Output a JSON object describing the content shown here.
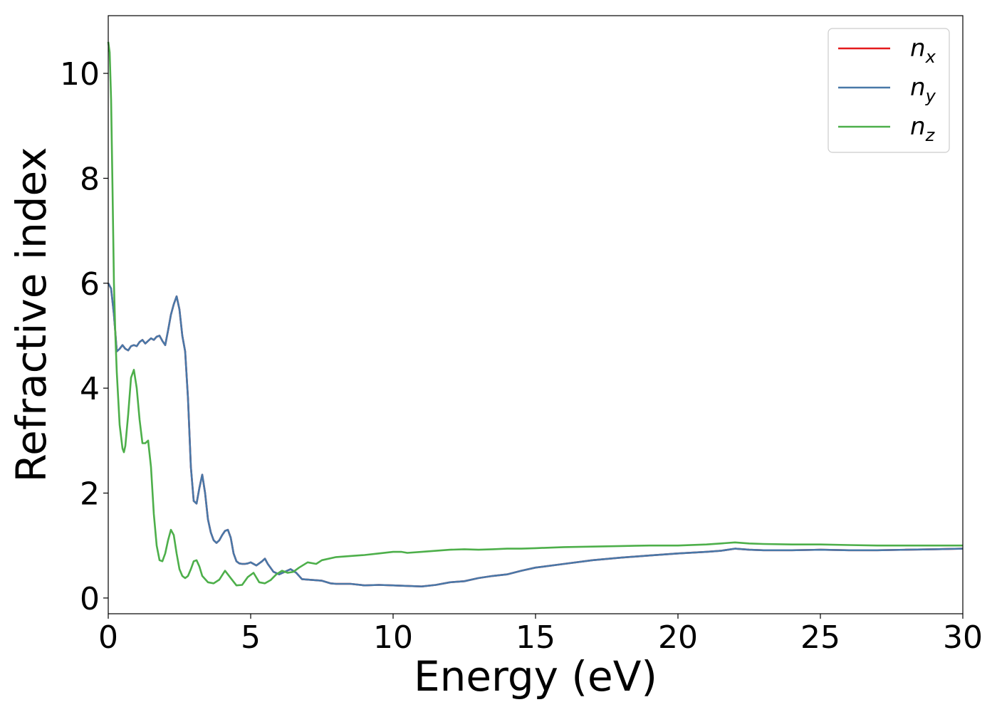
{
  "chart_data": {
    "type": "line",
    "title": "",
    "xlabel": "Energy (eV)",
    "ylabel": "Refractive index",
    "xlim": [
      0,
      30
    ],
    "ylim": [
      -0.3,
      11.1
    ],
    "xticks": [
      0,
      5,
      10,
      15,
      20,
      25,
      30
    ],
    "yticks": [
      0,
      2,
      4,
      6,
      8,
      10
    ],
    "grid": false,
    "legend_position": "top-right",
    "series": [
      {
        "name": "n",
        "subscript": "x",
        "color": "#e41a1c",
        "x": [
          0,
          0.1,
          0.2,
          0.3,
          0.4,
          0.5,
          0.6,
          0.7,
          0.8,
          0.9,
          1.0,
          1.1,
          1.2,
          1.3,
          1.4,
          1.5,
          1.6,
          1.7,
          1.8,
          1.9,
          2.0,
          2.1,
          2.2,
          2.3,
          2.4,
          2.5,
          2.6,
          2.7,
          2.8,
          2.9,
          3.0,
          3.1,
          3.2,
          3.3,
          3.4,
          3.5,
          3.6,
          3.7,
          3.8,
          3.9,
          4.0,
          4.1,
          4.2,
          4.3,
          4.4,
          4.5,
          4.6,
          4.7,
          4.8,
          4.9,
          5.0,
          5.2,
          5.4,
          5.5,
          5.6,
          5.8,
          6.0,
          6.2,
          6.4,
          6.6,
          6.8,
          7.0,
          7.5,
          7.8,
          8.0,
          8.5,
          9.0,
          9.5,
          10.0,
          10.5,
          11.0,
          11.5,
          12.0,
          12.5,
          13.0,
          13.5,
          14.0,
          14.5,
          15.0,
          16.0,
          17.0,
          18.0,
          19.0,
          20.0,
          21.0,
          21.5,
          22.0,
          22.5,
          23.0,
          24.0,
          25.0,
          26.0,
          27.0,
          28.0,
          29.0,
          30.0
        ],
        "y": [
          6.0,
          5.9,
          5.4,
          4.7,
          4.75,
          4.82,
          4.75,
          4.72,
          4.8,
          4.82,
          4.8,
          4.88,
          4.92,
          4.85,
          4.9,
          4.95,
          4.92,
          4.98,
          5.0,
          4.9,
          4.82,
          5.1,
          5.4,
          5.6,
          5.75,
          5.5,
          5.0,
          4.7,
          3.8,
          2.5,
          1.85,
          1.8,
          2.1,
          2.35,
          2.0,
          1.5,
          1.25,
          1.1,
          1.05,
          1.1,
          1.2,
          1.28,
          1.3,
          1.15,
          0.85,
          0.7,
          0.66,
          0.65,
          0.65,
          0.66,
          0.68,
          0.62,
          0.7,
          0.75,
          0.65,
          0.5,
          0.45,
          0.5,
          0.55,
          0.48,
          0.36,
          0.35,
          0.33,
          0.28,
          0.27,
          0.27,
          0.24,
          0.25,
          0.24,
          0.23,
          0.22,
          0.25,
          0.3,
          0.32,
          0.38,
          0.42,
          0.45,
          0.52,
          0.58,
          0.65,
          0.72,
          0.77,
          0.81,
          0.85,
          0.88,
          0.9,
          0.94,
          0.92,
          0.91,
          0.91,
          0.92,
          0.91,
          0.91,
          0.92,
          0.93,
          0.94
        ]
      },
      {
        "name": "n",
        "subscript": "y",
        "color": "#4878a8",
        "x": [
          0,
          0.1,
          0.2,
          0.3,
          0.4,
          0.5,
          0.6,
          0.7,
          0.8,
          0.9,
          1.0,
          1.1,
          1.2,
          1.3,
          1.4,
          1.5,
          1.6,
          1.7,
          1.8,
          1.9,
          2.0,
          2.1,
          2.2,
          2.3,
          2.4,
          2.5,
          2.6,
          2.7,
          2.8,
          2.9,
          3.0,
          3.1,
          3.2,
          3.3,
          3.4,
          3.5,
          3.6,
          3.7,
          3.8,
          3.9,
          4.0,
          4.1,
          4.2,
          4.3,
          4.4,
          4.5,
          4.6,
          4.7,
          4.8,
          4.9,
          5.0,
          5.2,
          5.4,
          5.5,
          5.6,
          5.8,
          6.0,
          6.2,
          6.4,
          6.6,
          6.8,
          7.0,
          7.5,
          7.8,
          8.0,
          8.5,
          9.0,
          9.5,
          10.0,
          10.5,
          11.0,
          11.5,
          12.0,
          12.5,
          13.0,
          13.5,
          14.0,
          14.5,
          15.0,
          16.0,
          17.0,
          18.0,
          19.0,
          20.0,
          21.0,
          21.5,
          22.0,
          22.5,
          23.0,
          24.0,
          25.0,
          26.0,
          27.0,
          28.0,
          29.0,
          30.0
        ],
        "y": [
          6.0,
          5.9,
          5.4,
          4.7,
          4.75,
          4.82,
          4.75,
          4.72,
          4.8,
          4.82,
          4.8,
          4.88,
          4.92,
          4.85,
          4.9,
          4.95,
          4.92,
          4.98,
          5.0,
          4.9,
          4.82,
          5.1,
          5.4,
          5.6,
          5.75,
          5.5,
          5.0,
          4.7,
          3.8,
          2.5,
          1.85,
          1.8,
          2.1,
          2.35,
          2.0,
          1.5,
          1.25,
          1.1,
          1.05,
          1.1,
          1.2,
          1.28,
          1.3,
          1.15,
          0.85,
          0.7,
          0.66,
          0.65,
          0.65,
          0.66,
          0.68,
          0.62,
          0.7,
          0.75,
          0.65,
          0.5,
          0.45,
          0.5,
          0.55,
          0.48,
          0.36,
          0.35,
          0.33,
          0.28,
          0.27,
          0.27,
          0.24,
          0.25,
          0.24,
          0.23,
          0.22,
          0.25,
          0.3,
          0.32,
          0.38,
          0.42,
          0.45,
          0.52,
          0.58,
          0.65,
          0.72,
          0.77,
          0.81,
          0.85,
          0.88,
          0.9,
          0.94,
          0.92,
          0.91,
          0.91,
          0.92,
          0.91,
          0.91,
          0.92,
          0.93,
          0.94
        ]
      },
      {
        "name": "n",
        "subscript": "z",
        "color": "#4daf4a",
        "x": [
          0,
          0.05,
          0.1,
          0.15,
          0.2,
          0.25,
          0.3,
          0.35,
          0.4,
          0.5,
          0.55,
          0.6,
          0.7,
          0.8,
          0.9,
          1.0,
          1.1,
          1.2,
          1.3,
          1.4,
          1.5,
          1.6,
          1.7,
          1.8,
          1.9,
          2.0,
          2.1,
          2.2,
          2.3,
          2.4,
          2.5,
          2.6,
          2.7,
          2.8,
          2.9,
          3.0,
          3.1,
          3.2,
          3.3,
          3.5,
          3.7,
          3.9,
          4.1,
          4.3,
          4.5,
          4.7,
          4.9,
          5.1,
          5.3,
          5.5,
          5.7,
          5.9,
          6.1,
          6.3,
          6.5,
          6.7,
          7.0,
          7.3,
          7.5,
          8.0,
          8.5,
          9.0,
          9.5,
          10.0,
          10.3,
          10.5,
          11.0,
          11.5,
          12.0,
          12.5,
          13.0,
          13.5,
          14.0,
          14.5,
          15.0,
          16.0,
          17.0,
          18.0,
          19.0,
          20.0,
          21.0,
          21.5,
          22.0,
          22.5,
          23.0,
          24.0,
          25.0,
          26.0,
          27.0,
          28.0,
          29.0,
          30.0
        ],
        "y": [
          10.6,
          10.4,
          9.5,
          7.8,
          6.0,
          5.0,
          4.3,
          3.8,
          3.3,
          2.85,
          2.78,
          2.9,
          3.5,
          4.2,
          4.35,
          4.0,
          3.4,
          2.95,
          2.95,
          3.0,
          2.5,
          1.6,
          1.0,
          0.72,
          0.7,
          0.85,
          1.1,
          1.3,
          1.2,
          0.85,
          0.55,
          0.42,
          0.38,
          0.42,
          0.55,
          0.7,
          0.72,
          0.6,
          0.42,
          0.3,
          0.28,
          0.35,
          0.52,
          0.38,
          0.24,
          0.25,
          0.4,
          0.48,
          0.3,
          0.28,
          0.34,
          0.45,
          0.52,
          0.48,
          0.5,
          0.58,
          0.68,
          0.65,
          0.72,
          0.78,
          0.8,
          0.82,
          0.85,
          0.88,
          0.88,
          0.86,
          0.88,
          0.9,
          0.92,
          0.93,
          0.92,
          0.93,
          0.94,
          0.94,
          0.95,
          0.97,
          0.98,
          0.99,
          1.0,
          1.0,
          1.02,
          1.04,
          1.06,
          1.04,
          1.03,
          1.02,
          1.02,
          1.01,
          1.0,
          1.0,
          1.0,
          1.0
        ]
      }
    ]
  }
}
